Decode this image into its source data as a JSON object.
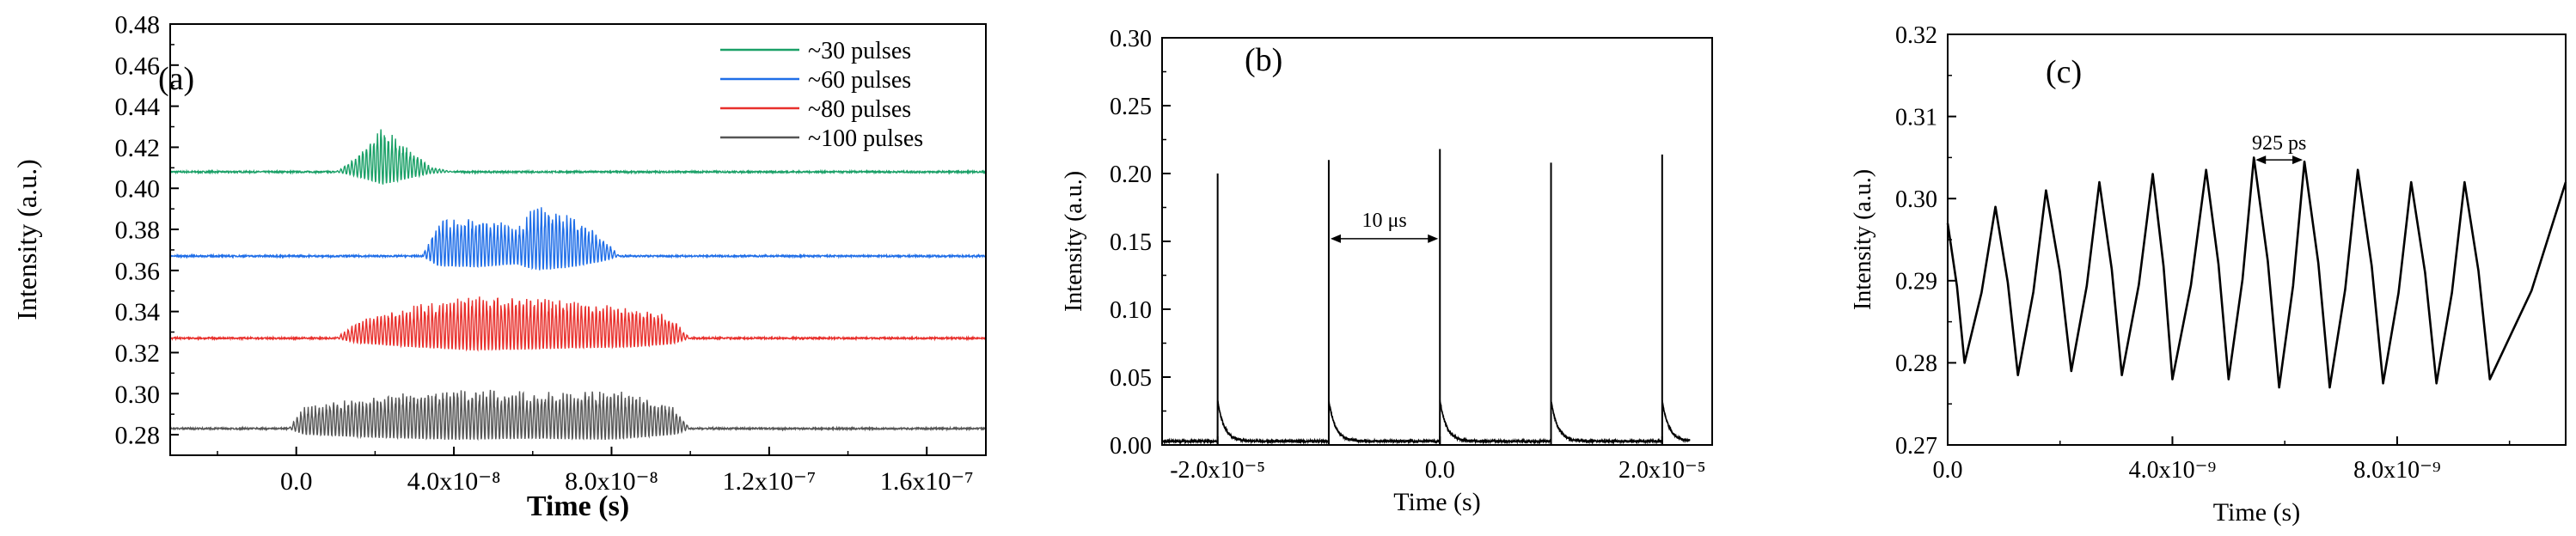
{
  "chart_data": [
    {
      "type": "line",
      "panel_label": "(a)",
      "xlabel": "Time (s)",
      "ylabel": "Intensity (a.u.)",
      "xlim": [
        -3.2e-08,
        1.75e-07
      ],
      "ylim": [
        0.27,
        0.48
      ],
      "xticks": [
        0,
        4e-08,
        8e-08,
        1.2e-07,
        1.6e-07
      ],
      "xtick_labels": [
        "0.0",
        "4.0x10⁻⁸",
        "8.0x10⁻⁸",
        "1.2x10⁻⁷",
        "1.6x10⁻⁷"
      ],
      "yticks": [
        0.28,
        0.3,
        0.32,
        0.34,
        0.36,
        0.38,
        0.4,
        0.42,
        0.44,
        0.46,
        0.48
      ],
      "ytick_labels": [
        "0.28",
        "0.30",
        "0.32",
        "0.34",
        "0.36",
        "0.38",
        "0.40",
        "0.42",
        "0.44",
        "0.46",
        "0.48"
      ],
      "legend_position": "top-right",
      "series": [
        {
          "name": "~30 pulses",
          "color": "#1aa067",
          "baseline": 0.408,
          "envelope": [
            [
              -3.2e-08,
              0.0
            ],
            [
              1e-08,
              0.0
            ],
            [
              1.4e-08,
              0.006
            ],
            [
              2.2e-08,
              0.025
            ],
            [
              2.9e-08,
              0.012
            ],
            [
              3.4e-08,
              0.003
            ],
            [
              4e-08,
              0.0
            ],
            [
              1.75e-07,
              0.0
            ]
          ]
        },
        {
          "name": "~60 pulses",
          "color": "#1f6ee8",
          "baseline": 0.367,
          "envelope": [
            [
              -3.2e-08,
              0.0
            ],
            [
              3.2e-08,
              0.0
            ],
            [
              3.6e-08,
              0.02
            ],
            [
              4.6e-08,
              0.022
            ],
            [
              5.6e-08,
              0.016
            ],
            [
              5.9e-08,
              0.024
            ],
            [
              6.2e-08,
              0.028
            ],
            [
              7e-08,
              0.022
            ],
            [
              7.8e-08,
              0.01
            ],
            [
              8.2e-08,
              0.0
            ],
            [
              1.75e-07,
              0.0
            ]
          ]
        },
        {
          "name": "~80 pulses",
          "color": "#e8302c",
          "baseline": 0.327,
          "envelope": [
            [
              -3.2e-08,
              0.0
            ],
            [
              1e-08,
              0.0
            ],
            [
              1.6e-08,
              0.01
            ],
            [
              3e-08,
              0.018
            ],
            [
              4.5e-08,
              0.024
            ],
            [
              6e-08,
              0.022
            ],
            [
              7e-08,
              0.02
            ],
            [
              8.5e-08,
              0.018
            ],
            [
              9.5e-08,
              0.012
            ],
            [
              1e-07,
              0.0
            ],
            [
              1.75e-07,
              0.0
            ]
          ]
        },
        {
          "name": "~100 pulses",
          "color": "#555555",
          "baseline": 0.283,
          "envelope": [
            [
              -3.2e-08,
              0.0
            ],
            [
              -2e-09,
              0.0
            ],
            [
              2e-09,
              0.012
            ],
            [
              2e-08,
              0.018
            ],
            [
              4e-08,
              0.022
            ],
            [
              6e-08,
              0.02
            ],
            [
              8e-08,
              0.022
            ],
            [
              9.6e-08,
              0.012
            ],
            [
              1e-07,
              0.0
            ],
            [
              1.75e-07,
              0.0
            ]
          ]
        }
      ],
      "oscillation_period": 9.25e-10
    },
    {
      "type": "line",
      "panel_label": "(b)",
      "xlabel": "Time (s)",
      "ylabel": "Intensity (a.u.)",
      "xlim": [
        -2.5e-05,
        2.45e-05
      ],
      "ylim": [
        0.0,
        0.3
      ],
      "xticks": [
        -2e-05,
        0,
        2e-05
      ],
      "xtick_labels": [
        "-2.0x10⁻⁵",
        "0.0",
        "2.0x10⁻⁵"
      ],
      "yticks": [
        0.0,
        0.05,
        0.1,
        0.15,
        0.2,
        0.25,
        0.3
      ],
      "ytick_labels": [
        "0.00",
        "0.05",
        "0.10",
        "0.15",
        "0.20",
        "0.25",
        "0.30"
      ],
      "color": "#000000",
      "peaks_x": [
        -2e-05,
        -1e-05,
        0.0,
        1e-05,
        2e-05
      ],
      "peaks_y": [
        0.2,
        0.21,
        0.218,
        0.208,
        0.214
      ],
      "data_range": [
        -2.5e-05,
        2.25e-05
      ],
      "annotation": {
        "text": "10 μs",
        "x_start": -1e-05,
        "x_end": 0.0,
        "y": 0.152
      }
    },
    {
      "type": "line",
      "panel_label": "(c)",
      "xlabel": "Time (s)",
      "ylabel": "Intensity (a.u.)",
      "xlim": [
        0,
        1.1e-08
      ],
      "ylim": [
        0.27,
        0.32
      ],
      "xticks": [
        0,
        4e-09,
        8e-09
      ],
      "xtick_labels": [
        "0.0",
        "4.0x10⁻⁹",
        "8.0x10⁻⁹"
      ],
      "yticks": [
        0.27,
        0.28,
        0.29,
        0.3,
        0.31,
        0.32
      ],
      "ytick_labels": [
        "0.27",
        "0.28",
        "0.29",
        "0.30",
        "0.31",
        "0.32"
      ],
      "color": "#000000",
      "peaks_x": [
        0.0,
        8.5e-10,
        1.75e-09,
        2.7e-09,
        3.65e-09,
        4.6e-09,
        5.45e-09,
        6.35e-09,
        7.3e-09,
        8.25e-09,
        9.2e-09,
        1.1e-08
      ],
      "peaks_y": [
        0.297,
        0.299,
        0.301,
        0.302,
        0.303,
        0.3035,
        0.305,
        0.3045,
        0.3035,
        0.302,
        0.302,
        0.302
      ],
      "troughs_x": [
        3e-10,
        1.25e-09,
        2.2e-09,
        3.1e-09,
        4e-09,
        5e-09,
        5.9e-09,
        6.8e-09,
        7.75e-09,
        8.7e-09,
        9.65e-09
      ],
      "troughs_y": [
        0.28,
        0.2785,
        0.279,
        0.2785,
        0.278,
        0.278,
        0.277,
        0.277,
        0.2775,
        0.2775,
        0.278
      ],
      "annotation": {
        "text": "925 ps",
        "x_start": 5.45e-09,
        "x_end": 6.35e-09,
        "y": 0.3045
      }
    }
  ]
}
